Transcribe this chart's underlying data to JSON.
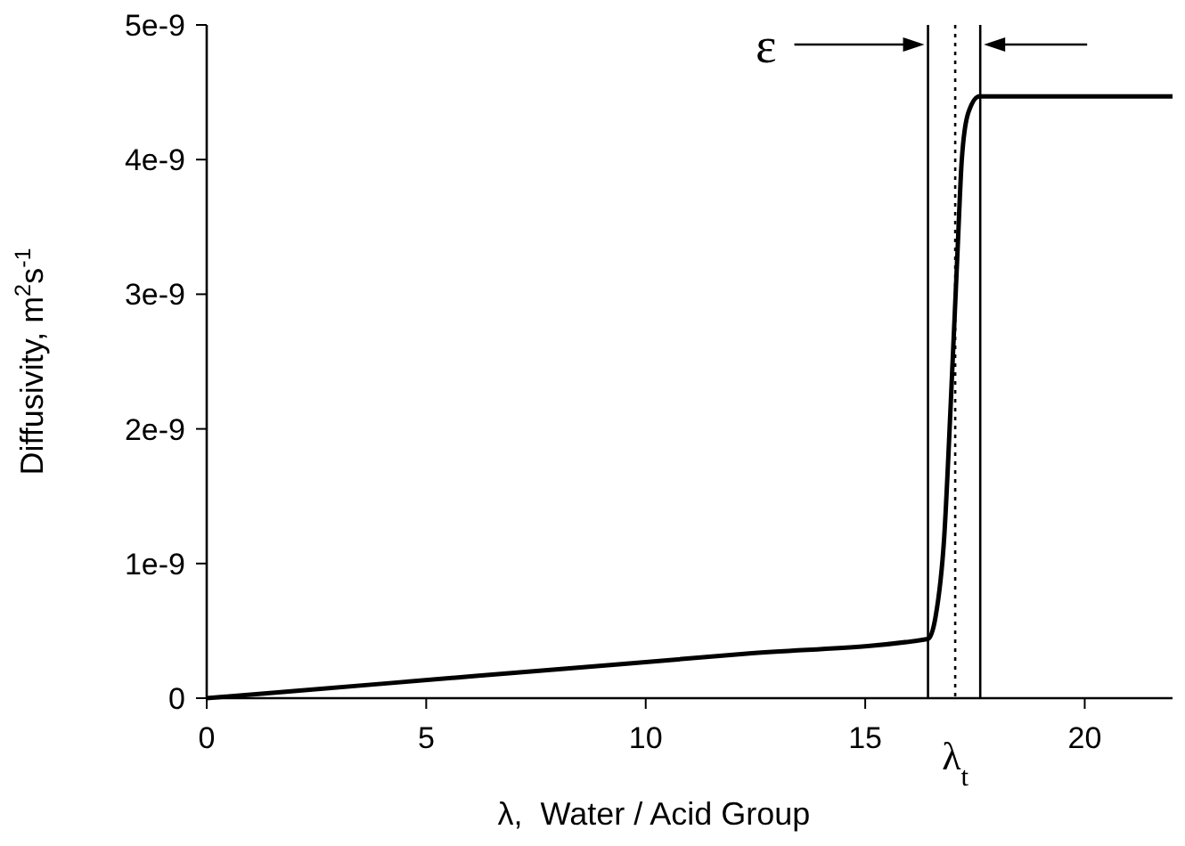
{
  "chart_data": {
    "type": "line",
    "xlabel": "λ,  Water / Acid Group",
    "ylabel": "Diffusivity, m$^{2}$s$^{-1}$",
    "x": [
      0,
      4.1,
      8.2,
      12.3,
      16.43,
      16.6,
      16.8,
      16.95,
      17.1,
      17.2,
      17.35,
      17.6,
      22
    ],
    "series": [
      {
        "color": "#000000",
        "values": [
          0,
          1.1e-10,
          2.2e-10,
          3.3e-10,
          4.4e-10,
          6e-10,
          1.2e-09,
          2.2e-09,
          3.3e-09,
          4e-09,
          4.35e-09,
          4.47e-09,
          4.47e-09
        ]
      }
    ],
    "xlim": [
      0,
      22
    ],
    "xticks": [
      0,
      5,
      10,
      15,
      20
    ],
    "ylim": [
      0,
      5e-09
    ],
    "yticks": [
      {
        "value": 0,
        "label": "0"
      },
      {
        "value": 1e-09,
        "label": "1e-9"
      },
      {
        "value": 2e-09,
        "label": "2e-9"
      },
      {
        "value": 3e-09,
        "label": "3e-9"
      },
      {
        "value": 4e-09,
        "label": "4e-9"
      },
      {
        "value": 5e-09,
        "label": "5e-9"
      }
    ],
    "grid": false,
    "marker": "none",
    "line_style": "solid",
    "ref_lines": [
      {
        "axis": "x",
        "value": 16.43,
        "color": "#000000",
        "line_style": "solid"
      },
      {
        "axis": "x",
        "value": 17.05,
        "label": "λ$_{t}$",
        "color": "#000000",
        "line_style": "dotted"
      },
      {
        "axis": "x",
        "value": 17.62,
        "color": "#000000",
        "line_style": "solid"
      }
    ],
    "annotations": [
      "ε"
    ]
  }
}
